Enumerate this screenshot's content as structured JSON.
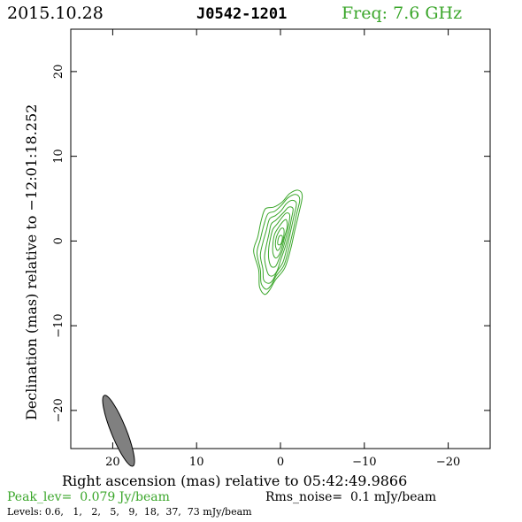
{
  "header": {
    "date": "2015.10.28",
    "source": "J0542-1201",
    "freq": "Freq: 7.6 GHz"
  },
  "footer": {
    "peak": "Peak_lev=  0.079 Jy/beam",
    "rms": "Rms_noise=  0.1 mJy/beam",
    "levels": "Levels: 0.6,   1,   2,   5,   9,  18,  37,  73 mJy/beam"
  },
  "colors": {
    "contour": "#3aa62a",
    "beam_fill": "#808080",
    "axis": "#000000"
  },
  "chart_data": {
    "type": "contour",
    "title": "J0542-1201",
    "xlabel": "Right ascension (mas) relative to 05:42:49.9866",
    "ylabel": "Declination (mas) relative to −12:01:18.252",
    "xlim": [
      25,
      -25
    ],
    "ylim": [
      -24.5,
      25
    ],
    "xticks": [
      20,
      10,
      0,
      -10,
      -20
    ],
    "xtick_labels": [
      "20",
      "10",
      "0",
      "−10",
      "−20"
    ],
    "yticks": [
      20,
      10,
      0,
      -10,
      -20
    ],
    "ytick_labels": [
      "20",
      "10",
      "0",
      "−10",
      "−20"
    ],
    "levels_mJy": [
      0.6,
      1,
      2,
      5,
      9,
      18,
      37,
      73
    ],
    "contours": [
      {
        "level": 0.6,
        "points": [
          [
            0.8,
            4.0
          ],
          [
            1.8,
            3.8
          ],
          [
            2.3,
            2.4
          ],
          [
            2.7,
            0.5
          ],
          [
            3.2,
            -1.2
          ],
          [
            2.6,
            -3.4
          ],
          [
            2.5,
            -5.4
          ],
          [
            1.9,
            -6.3
          ],
          [
            1.3,
            -5.8
          ],
          [
            0.6,
            -4.6
          ],
          [
            -0.5,
            -3.2
          ],
          [
            -1.2,
            -1.0
          ],
          [
            -1.7,
            1.2
          ],
          [
            -2.2,
            3.3
          ],
          [
            -2.6,
            5.3
          ],
          [
            -2.1,
            6.0
          ],
          [
            -1.1,
            5.6
          ],
          [
            -0.2,
            4.6
          ]
        ]
      },
      {
        "level": 1,
        "points": [
          [
            0.7,
            3.5
          ],
          [
            1.5,
            3.2
          ],
          [
            2.0,
            1.8
          ],
          [
            2.4,
            0.2
          ],
          [
            2.8,
            -1.4
          ],
          [
            2.4,
            -3.4
          ],
          [
            2.3,
            -5.0
          ],
          [
            1.7,
            -5.7
          ],
          [
            1.1,
            -5.2
          ],
          [
            0.5,
            -4.1
          ],
          [
            -0.4,
            -2.9
          ],
          [
            -1.0,
            -0.9
          ],
          [
            -1.5,
            1.2
          ],
          [
            -1.9,
            3.1
          ],
          [
            -2.3,
            4.9
          ],
          [
            -1.8,
            5.5
          ],
          [
            -0.9,
            5.1
          ],
          [
            -0.1,
            4.2
          ]
        ]
      },
      {
        "level": 2,
        "points": [
          [
            0.6,
            3.0
          ],
          [
            1.3,
            2.6
          ],
          [
            1.7,
            1.2
          ],
          [
            2.1,
            -0.2
          ],
          [
            2.4,
            -1.7
          ],
          [
            2.1,
            -3.3
          ],
          [
            2.0,
            -4.6
          ],
          [
            1.4,
            -5.0
          ],
          [
            0.9,
            -4.6
          ],
          [
            0.4,
            -3.6
          ],
          [
            -0.3,
            -2.5
          ],
          [
            -0.8,
            -0.7
          ],
          [
            -1.2,
            1.1
          ],
          [
            -1.6,
            2.9
          ],
          [
            -1.9,
            4.4
          ],
          [
            -1.4,
            4.8
          ],
          [
            -0.7,
            4.4
          ],
          [
            -0.1,
            3.6
          ]
        ]
      },
      {
        "level": 5,
        "points": [
          [
            0.5,
            2.5
          ],
          [
            1.1,
            2.0
          ],
          [
            1.4,
            0.7
          ],
          [
            1.7,
            -0.6
          ],
          [
            1.9,
            -1.9
          ],
          [
            1.7,
            -3.2
          ],
          [
            1.4,
            -4.0
          ],
          [
            0.9,
            -4.1
          ],
          [
            0.4,
            -3.5
          ],
          [
            0.0,
            -2.3
          ],
          [
            -0.6,
            -0.6
          ],
          [
            -1.0,
            1.0
          ],
          [
            -1.3,
            2.6
          ],
          [
            -1.5,
            3.8
          ],
          [
            -1.0,
            4.0
          ],
          [
            -0.4,
            3.4
          ]
        ]
      },
      {
        "level": 9,
        "points": [
          [
            0.4,
            2.0
          ],
          [
            0.9,
            1.4
          ],
          [
            1.2,
            0.3
          ],
          [
            1.4,
            -0.9
          ],
          [
            1.4,
            -2.1
          ],
          [
            1.1,
            -3.0
          ],
          [
            0.6,
            -3.0
          ],
          [
            0.2,
            -2.2
          ],
          [
            -0.3,
            -0.9
          ],
          [
            -0.7,
            0.6
          ],
          [
            -1.0,
            2.0
          ],
          [
            -1.1,
            3.1
          ],
          [
            -0.7,
            3.3
          ],
          [
            -0.2,
            2.8
          ]
        ]
      },
      {
        "level": 18,
        "points": [
          [
            0.3,
            1.5
          ],
          [
            0.7,
            0.8
          ],
          [
            0.9,
            -0.3
          ],
          [
            0.9,
            -1.4
          ],
          [
            0.6,
            -2.0
          ],
          [
            0.2,
            -1.7
          ],
          [
            -0.2,
            -0.7
          ],
          [
            -0.5,
            0.5
          ],
          [
            -0.8,
            1.7
          ],
          [
            -0.7,
            2.5
          ],
          [
            -0.3,
            2.3
          ]
        ]
      },
      {
        "level": 37,
        "points": [
          [
            0.2,
            1.1
          ],
          [
            0.5,
            0.4
          ],
          [
            0.6,
            -0.5
          ],
          [
            0.4,
            -1.1
          ],
          [
            0.1,
            -0.9
          ],
          [
            -0.2,
            -0.2
          ],
          [
            -0.4,
            0.6
          ],
          [
            -0.4,
            1.4
          ],
          [
            -0.1,
            1.5
          ]
        ]
      },
      {
        "level": 73,
        "points": [
          [
            0.1,
            0.6
          ],
          [
            0.3,
            0.1
          ],
          [
            0.3,
            -0.4
          ],
          [
            0.0,
            -0.4
          ],
          [
            -0.2,
            0.1
          ],
          [
            -0.2,
            0.6
          ]
        ]
      }
    ],
    "beam": {
      "ra": 19.3,
      "dec": -22.4,
      "major_mas": 4.5,
      "minor_mas": 0.9,
      "pa_deg": -22
    }
  }
}
